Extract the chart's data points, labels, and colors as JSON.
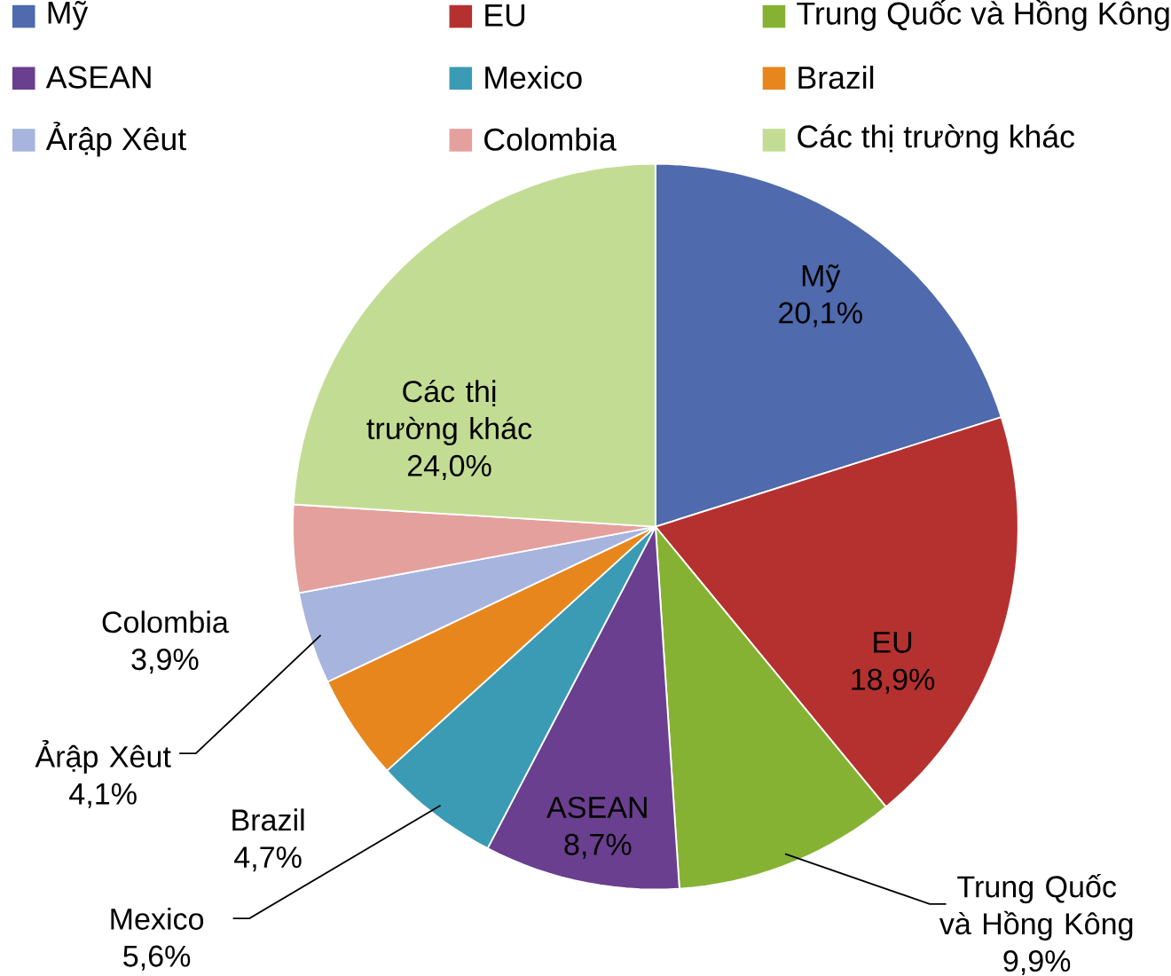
{
  "chart_data": {
    "type": "pie",
    "categories": [
      "Mỹ",
      "EU",
      "Trung Quốc và Hồng Kông",
      "ASEAN",
      "Mexico",
      "Brazil",
      "Ảrập Xêut",
      "Colombia",
      "Các thị trường khác"
    ],
    "values": [
      20.1,
      18.9,
      9.9,
      8.7,
      5.6,
      4.7,
      4.1,
      3.9,
      24.0
    ],
    "value_labels": [
      "20,1%",
      "18,9%",
      "9,9%",
      "8,7%",
      "5,6%",
      "4,7%",
      "4,1%",
      "3,9%",
      "24,0%"
    ],
    "colors": [
      "#4f6aad",
      "#b5312f",
      "#86b234",
      "#6b3f8f",
      "#3b9bb5",
      "#e8861e",
      "#a7b4de",
      "#e4a09d",
      "#c3dc93"
    ],
    "legend": "top"
  }
}
